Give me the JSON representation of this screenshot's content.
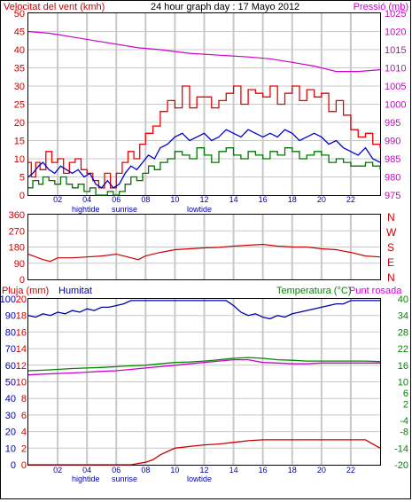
{
  "colors": {
    "wind_avg": "#0000cc",
    "wind_gust": "#ee0000",
    "wind_low": "#007700",
    "pressure": "#cc00cc",
    "direction": "#cc0000",
    "humidity": "#0000aa",
    "temperature": "#008800",
    "dewpoint": "#cc00cc",
    "rain": "#cc0000",
    "grid": "#c8c8c8",
    "label_red": "#cc0000",
    "label_blue": "#0000aa",
    "label_green": "#008800",
    "label_magenta": "#cc00cc",
    "frame": "#000000"
  },
  "header": {
    "left": "Velocitat del vent (kmh)",
    "center": "24 hour graph day : 17 Mayo 2012",
    "right": "Pressió (mb)"
  },
  "panel3_header": {
    "rain": "Pluja (mm)",
    "humidity": "Humitat",
    "temperature": "Temperatura (°C)",
    "dewpoint": "Punt rosada"
  },
  "direction_letters": [
    "N",
    "W",
    "S",
    "E",
    "N"
  ],
  "time_ticks": [
    "02",
    "04",
    "06",
    "08",
    "10",
    "12",
    "14",
    "16",
    "18",
    "20",
    "22"
  ],
  "event_labels": [
    "hightide",
    "sunrise",
    "lowtide"
  ],
  "chart_data": [
    {
      "type": "line",
      "panel": "wind_pressure",
      "xlim": [
        0,
        24
      ],
      "ylim": [
        0,
        50
      ],
      "y2lim": [
        975,
        1025
      ],
      "yticks": [
        "0",
        "5",
        "10",
        "15",
        "20",
        "25",
        "30",
        "35",
        "40",
        "45",
        "50"
      ],
      "y2ticks": [
        "975",
        "980",
        "985",
        "990",
        "995",
        "1000",
        "1005",
        "1010",
        "1015",
        "1020",
        "1025"
      ],
      "series": [
        {
          "key": "pressure",
          "axis": "right",
          "x": [
            0,
            1.5,
            3,
            4.5,
            6,
            7.5,
            9,
            11,
            13,
            15,
            16.5,
            18,
            19.5,
            20.5,
            21,
            22.5,
            24
          ],
          "values": [
            1020,
            1019.5,
            1018.5,
            1017.5,
            1016.5,
            1015.5,
            1015,
            1014,
            1013.5,
            1013,
            1012.5,
            1011.5,
            1010.5,
            1009.5,
            1009,
            1009,
            1009.5
          ]
        },
        {
          "key": "gust",
          "x": [
            0,
            0.2,
            0.5,
            0.8,
            1.2,
            1.6,
            2.0,
            2.4,
            2.8,
            3.2,
            3.6,
            4.0,
            4.4,
            4.8,
            5.2,
            5.6,
            6.0,
            6.4,
            6.8,
            7.2,
            7.6,
            8.0,
            8.5,
            9.0,
            9.5,
            10.0,
            10.5,
            11.0,
            11.5,
            12.0,
            12.5,
            13.0,
            13.5,
            14.0,
            14.5,
            15.0,
            15.5,
            16.0,
            16.5,
            17.0,
            17.5,
            18.0,
            18.5,
            19.0,
            19.5,
            20.0,
            20.5,
            21.0,
            21.5,
            22.0,
            22.5,
            23.0,
            23.5,
            24.0
          ],
          "values": [
            9,
            5,
            9,
            7,
            12,
            9,
            10,
            6,
            9,
            10,
            7,
            6,
            4,
            2,
            6,
            2,
            6,
            9,
            12,
            10,
            14,
            17,
            19,
            23,
            26,
            24,
            30,
            24,
            27,
            27,
            24,
            26,
            28,
            30,
            25,
            29,
            28,
            27,
            30,
            25,
            28,
            30,
            26,
            29,
            27,
            28,
            23,
            26,
            22,
            18,
            16,
            17,
            14,
            13
          ]
        },
        {
          "key": "avg",
          "x": [
            0,
            0.3,
            0.7,
            1.0,
            1.4,
            1.8,
            2.2,
            2.6,
            3.0,
            3.4,
            3.8,
            4.2,
            4.6,
            5.0,
            5.4,
            5.8,
            6.2,
            6.6,
            7.0,
            7.4,
            7.8,
            8.2,
            8.6,
            9.0,
            9.5,
            10.0,
            10.5,
            11.0,
            11.5,
            12.0,
            12.5,
            13.0,
            13.5,
            14.0,
            14.5,
            15.0,
            15.5,
            16.0,
            16.5,
            17.0,
            17.5,
            18.0,
            18.5,
            19.0,
            19.5,
            20.0,
            20.5,
            21.0,
            21.5,
            22.0,
            22.5,
            23.0,
            23.5,
            24.0
          ],
          "values": [
            5,
            6,
            8,
            9,
            7,
            6,
            8,
            7,
            6,
            7,
            5,
            6,
            3,
            2,
            4,
            2,
            3,
            6,
            8,
            7,
            9,
            11,
            10,
            13,
            14,
            16,
            17,
            15,
            16,
            17,
            15,
            16,
            18,
            17,
            16,
            18,
            17,
            16,
            17,
            16,
            18,
            17,
            15,
            16,
            17,
            16,
            14,
            15,
            13,
            12,
            11,
            13,
            10,
            9
          ]
        },
        {
          "key": "low",
          "x": [
            0,
            0.3,
            0.7,
            1.0,
            1.4,
            1.8,
            2.2,
            2.6,
            3.0,
            3.4,
            3.8,
            4.2,
            4.6,
            5.0,
            5.4,
            5.8,
            6.2,
            6.6,
            7.0,
            7.4,
            7.8,
            8.2,
            8.6,
            9.0,
            9.5,
            10.0,
            10.5,
            11.0,
            11.5,
            12.0,
            12.5,
            13.0,
            13.5,
            14.0,
            14.5,
            15.0,
            15.5,
            16.0,
            16.5,
            17.0,
            17.5,
            18.0,
            18.5,
            19.0,
            19.5,
            20.0,
            20.5,
            21.0,
            21.5,
            22.0,
            22.5,
            23.0,
            23.5,
            24.0
          ],
          "values": [
            2,
            4,
            3,
            5,
            4,
            3,
            5,
            3,
            2,
            3,
            1,
            2,
            0,
            0,
            1,
            0,
            1,
            3,
            5,
            4,
            6,
            8,
            7,
            9,
            10,
            12,
            11,
            10,
            13,
            11,
            9,
            12,
            13,
            11,
            10,
            12,
            11,
            10,
            12,
            11,
            13,
            12,
            10,
            11,
            12,
            11,
            9,
            10,
            9,
            8,
            8,
            9,
            8,
            7
          ]
        }
      ]
    },
    {
      "type": "line",
      "panel": "wind_direction",
      "xlim": [
        0,
        24
      ],
      "ylim": [
        0,
        360
      ],
      "yticks": [
        "0",
        "90",
        "180",
        "270",
        "360"
      ],
      "series": [
        {
          "key": "direction",
          "x": [
            0,
            1,
            1.5,
            2,
            3,
            4,
            5,
            6,
            6.5,
            7,
            7.5,
            8,
            9,
            10,
            11,
            12,
            13,
            14,
            15,
            16,
            17,
            18,
            19,
            20,
            21,
            22,
            23,
            24
          ],
          "values": [
            140,
            110,
            100,
            120,
            120,
            125,
            130,
            140,
            130,
            120,
            110,
            130,
            150,
            165,
            170,
            175,
            178,
            185,
            190,
            195,
            185,
            180,
            180,
            170,
            165,
            150,
            130,
            125
          ]
        }
      ]
    },
    {
      "type": "line",
      "panel": "humidity_temp_rain",
      "xlim": [
        0,
        24
      ],
      "ylim": [
        0,
        100
      ],
      "y2lim": [
        -20,
        40
      ],
      "yticks_rain": [
        "0",
        "2",
        "4",
        "6",
        "8",
        "10",
        "12",
        "14",
        "16",
        "18",
        "20"
      ],
      "yticks_hum": [
        "0",
        "10",
        "20",
        "30",
        "40",
        "50",
        "60",
        "70",
        "80",
        "90",
        "100"
      ],
      "y2ticks": [
        "-20",
        "-14",
        "-8",
        "-4",
        "2",
        "6",
        "10",
        "16",
        "22",
        "28",
        "34",
        "40"
      ],
      "series": [
        {
          "key": "humidity",
          "x": [
            0,
            0.5,
            1,
            1.5,
            2,
            2.5,
            3,
            3.5,
            4,
            4.5,
            5,
            5.5,
            6,
            6.5,
            7,
            8,
            9,
            10,
            11,
            12,
            13,
            13.5,
            14,
            14.5,
            15,
            15.5,
            16,
            16.5,
            17,
            17.5,
            18,
            18.5,
            19,
            19.5,
            20,
            21,
            21.5,
            22,
            23,
            24
          ],
          "values": [
            90,
            89,
            91,
            90,
            92,
            91,
            93,
            92,
            94,
            93,
            95,
            95,
            96,
            97,
            99,
            99,
            99,
            99,
            99,
            99,
            99,
            99,
            96,
            92,
            90,
            91,
            89,
            88,
            90,
            89,
            91,
            92,
            93,
            94,
            95,
            97,
            97,
            99,
            99,
            99
          ]
        },
        {
          "key": "temperature",
          "x": [
            0,
            1,
            2,
            3,
            4,
            5,
            6,
            7,
            8,
            9,
            10,
            11,
            12,
            13,
            14,
            15,
            16,
            17,
            18,
            19,
            20,
            21,
            22,
            23,
            24
          ],
          "values": [
            14,
            14.2,
            14.5,
            14.8,
            15,
            15.2,
            15.5,
            15.8,
            16,
            16.5,
            17,
            17.2,
            17.5,
            18,
            18.5,
            18.8,
            18.5,
            18,
            17.8,
            17.5,
            17.5,
            17.5,
            17.5,
            17.5,
            17.3
          ]
        },
        {
          "key": "dewpoint",
          "x": [
            0,
            1,
            2,
            3,
            4,
            5,
            6,
            7,
            8,
            9,
            10,
            11,
            12,
            13,
            14,
            15,
            16,
            17,
            18,
            19,
            20,
            21,
            22,
            23,
            24
          ],
          "values": [
            12.5,
            12.8,
            13,
            13.2,
            13.5,
            13.8,
            14,
            14.5,
            15,
            15.5,
            16,
            16.5,
            17,
            17.5,
            18,
            18,
            17,
            16.8,
            16.5,
            16.5,
            16.8,
            16.8,
            16.8,
            16.8,
            16.8
          ]
        },
        {
          "key": "rain",
          "x": [
            0,
            2,
            4,
            6,
            7,
            8,
            8.5,
            9,
            9.5,
            10,
            11,
            12,
            13,
            14,
            15,
            16,
            17,
            18,
            19,
            20,
            21,
            22,
            23,
            24
          ],
          "values": [
            0,
            0,
            0,
            0,
            0,
            0.3,
            0.6,
            1.2,
            1.6,
            2.0,
            2.2,
            2.4,
            2.5,
            2.7,
            2.9,
            3.0,
            3.0,
            3.0,
            3.0,
            3.0,
            3.0,
            3.0,
            3.0,
            2.0
          ]
        }
      ]
    }
  ]
}
